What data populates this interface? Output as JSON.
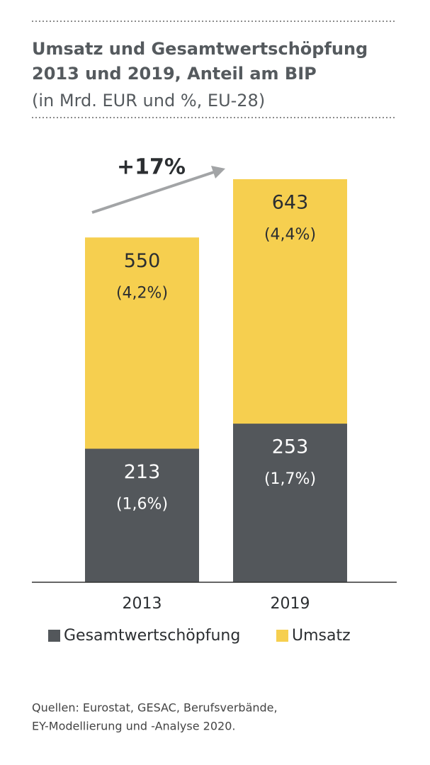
{
  "chart_data": {
    "type": "bar",
    "title": [
      "Umsatz und Gesamtwertschöpfung",
      "2013 und 2019, Anteil am BIP"
    ],
    "subtitle": "(in Mrd. EUR und %, EU-28)",
    "categories": [
      "2013",
      "2019"
    ],
    "series": [
      {
        "name": "Gesamtwertschöpfung",
        "color": "#53575b",
        "values": [
          213,
          253
        ],
        "share_labels": [
          "(1,6%)",
          "(1,7%)"
        ]
      },
      {
        "name": "Umsatz",
        "color": "#f6cf4f",
        "values": [
          550,
          643
        ],
        "share_labels": [
          "(4,2%)",
          "(4,4%)"
        ]
      }
    ],
    "annotation": "+17%",
    "source": [
      "Quellen: Eurostat, GESAC, Berufsverbände,",
      "EY-Modellierung und -Analyse 2020."
    ]
  }
}
